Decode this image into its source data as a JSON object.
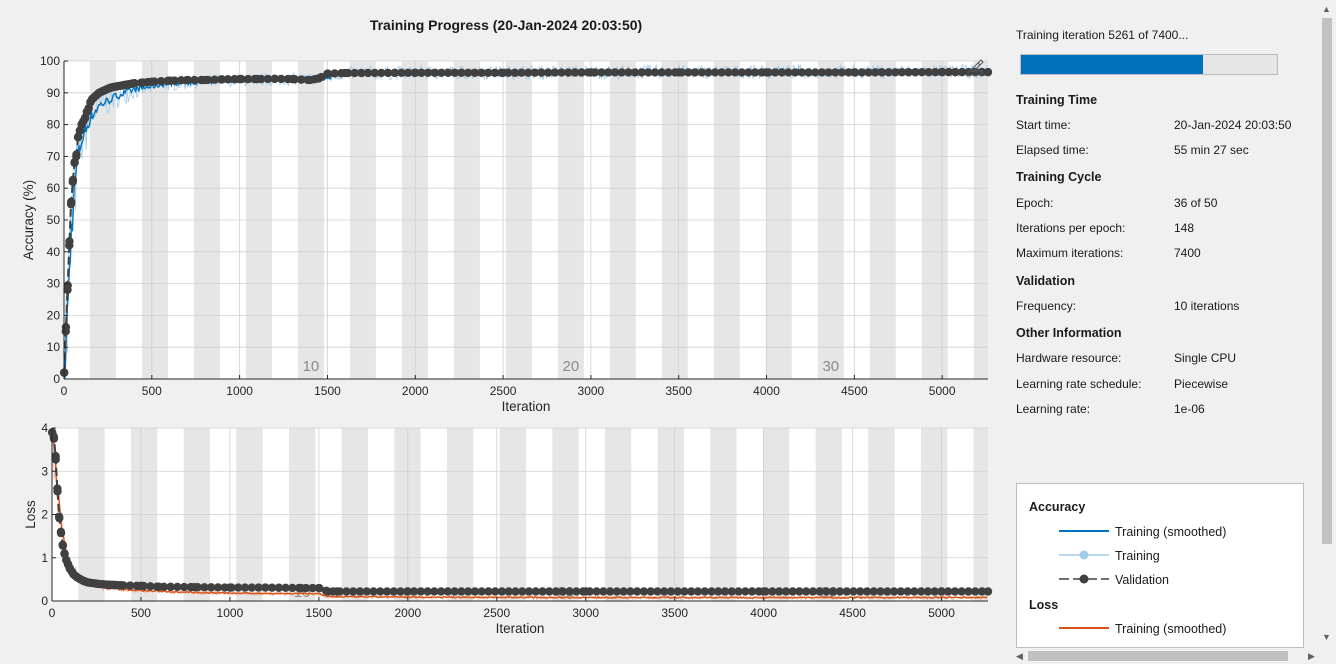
{
  "title": "Training Progress (20-Jan-2024 20:03:50)",
  "progress": {
    "text": "Training iteration 5261 of 7400...",
    "fraction": 0.711
  },
  "info": {
    "training_time_heading": "Training Time",
    "start_time_label": "Start time:",
    "start_time_value": "20-Jan-2024 20:03:50",
    "elapsed_label": "Elapsed time:",
    "elapsed_value": "55 min 27 sec",
    "training_cycle_heading": "Training Cycle",
    "epoch_label": "Epoch:",
    "epoch_value": "36 of 50",
    "ipe_label": "Iterations per epoch:",
    "ipe_value": "148",
    "maxiter_label": "Maximum iterations:",
    "maxiter_value": "7400",
    "validation_heading": "Validation",
    "frequency_label": "Frequency:",
    "frequency_value": "10 iterations",
    "other_heading": "Other Information",
    "hardware_label": "Hardware resource:",
    "hardware_value": "Single CPU",
    "lr_schedule_label": "Learning rate schedule:",
    "lr_schedule_value": "Piecewise",
    "lr_label": "Learning rate:",
    "lr_value": "1e-06"
  },
  "legend": {
    "accuracy_heading": "Accuracy",
    "acc_smoothed": "Training (smoothed)",
    "acc_training": "Training",
    "acc_validation": "Validation",
    "loss_heading": "Loss",
    "loss_smoothed": "Training (smoothed)"
  },
  "colors": {
    "accuracy_smoothed": "#0072bd",
    "accuracy_raw": "#a2cbe8",
    "loss_smoothed": "#d95319",
    "loss_raw": "#f2b9a0",
    "validation": "#404040",
    "epoch_band": "#e6e6e6"
  },
  "icons": {
    "export": "export-plot-icon"
  },
  "chart_data": [
    {
      "type": "line",
      "name": "accuracy",
      "xlabel": "Iteration",
      "ylabel": "Accuracy (%)",
      "xlim": [
        0,
        5261
      ],
      "ylim": [
        0,
        100
      ],
      "xticks": [
        0,
        500,
        1000,
        1500,
        2000,
        2500,
        3000,
        3500,
        4000,
        4500,
        5000
      ],
      "yticks": [
        0,
        10,
        20,
        30,
        40,
        50,
        60,
        70,
        80,
        90,
        100
      ],
      "grid": true,
      "iterations_per_epoch": 148,
      "epoch_labels": [
        10,
        20,
        30
      ],
      "validation": {
        "x": [
          1,
          10,
          20,
          30,
          40,
          50,
          60,
          70,
          80,
          90,
          100,
          110,
          120,
          130,
          140,
          150,
          160,
          170,
          180,
          190,
          200,
          220,
          240,
          260,
          280,
          300,
          350,
          400,
          450,
          500,
          600,
          700,
          800,
          900,
          1000,
          1100,
          1200,
          1300,
          1400,
          1450,
          1500,
          1600,
          2000,
          2500,
          3000,
          3500,
          4000,
          4500,
          5000,
          5261
        ],
        "y": [
          2,
          15,
          28,
          42,
          55,
          62,
          68,
          70,
          76,
          78,
          80,
          81,
          82,
          84,
          85,
          87,
          88,
          88.5,
          89,
          89.5,
          90,
          90.5,
          91,
          91.5,
          91.8,
          92,
          92.5,
          93,
          93.2,
          93.5,
          93.8,
          94,
          94,
          94.2,
          94.3,
          94.3,
          94.4,
          94.3,
          94,
          94.5,
          96,
          96.2,
          96.3,
          96.3,
          96.4,
          96.4,
          96.4,
          96.4,
          96.5,
          96.5
        ]
      },
      "smoothed_approx": {
        "x": [
          0,
          20,
          40,
          60,
          80,
          100,
          150,
          200,
          300,
          400,
          600,
          800,
          1000,
          1500,
          1550,
          2000,
          3000,
          4000,
          5261
        ],
        "y": [
          0,
          20,
          45,
          60,
          70,
          75,
          82,
          86,
          89,
          91,
          93,
          93.5,
          94,
          94.5,
          96,
          96.3,
          96.5,
          96.6,
          96.7
        ]
      }
    },
    {
      "type": "line",
      "name": "loss",
      "xlabel": "Iteration",
      "ylabel": "Loss",
      "xlim": [
        0,
        5261
      ],
      "ylim": [
        0,
        4
      ],
      "xticks": [
        0,
        500,
        1000,
        1500,
        2000,
        2500,
        3000,
        3500,
        4000,
        4500,
        5000
      ],
      "yticks": [
        0,
        1,
        2,
        3,
        4
      ],
      "grid": true,
      "epoch_labels": [
        10,
        20,
        30
      ],
      "validation": {
        "x": [
          1,
          10,
          20,
          30,
          40,
          50,
          60,
          70,
          80,
          90,
          100,
          120,
          140,
          160,
          180,
          200,
          250,
          300,
          350,
          400,
          500,
          600,
          800,
          1000,
          1200,
          1400,
          1500,
          1550,
          1600,
          2000,
          3000,
          4000,
          5000,
          5261
        ],
        "y": [
          3.9,
          3.8,
          3.35,
          2.6,
          1.95,
          1.6,
          1.3,
          1.1,
          0.95,
          0.85,
          0.75,
          0.62,
          0.55,
          0.5,
          0.46,
          0.43,
          0.4,
          0.38,
          0.37,
          0.36,
          0.35,
          0.33,
          0.32,
          0.31,
          0.31,
          0.3,
          0.3,
          0.22,
          0.22,
          0.22,
          0.22,
          0.22,
          0.22,
          0.22
        ]
      },
      "smoothed_approx": {
        "x": [
          0,
          20,
          40,
          60,
          80,
          100,
          150,
          200,
          300,
          500,
          800,
          1000,
          1500,
          1550,
          2000,
          3000,
          4000,
          5261
        ],
        "y": [
          3.9,
          3.2,
          2.2,
          1.5,
          1.1,
          0.85,
          0.55,
          0.4,
          0.3,
          0.24,
          0.2,
          0.18,
          0.17,
          0.1,
          0.09,
          0.08,
          0.08,
          0.08
        ]
      }
    }
  ]
}
